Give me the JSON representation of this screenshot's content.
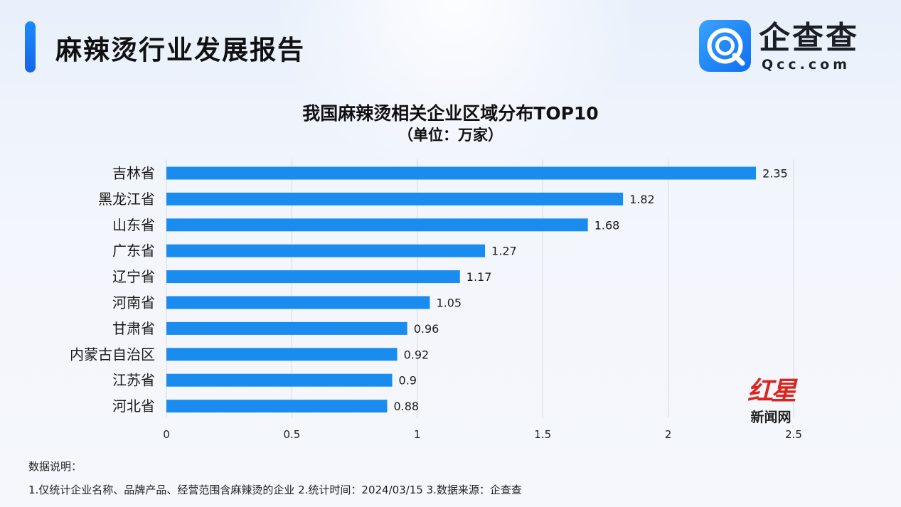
{
  "header": {
    "title": "麻辣烫行业发展报告"
  },
  "logo": {
    "name": "企查查",
    "domain": "Qcc.com",
    "brand_color": "#1a7cf5"
  },
  "chart_data": {
    "type": "bar",
    "orientation": "horizontal",
    "title": "我国麻辣烫相关企业区域分布TOP10",
    "subtitle": "（单位：万家）",
    "categories": [
      "吉林省",
      "黑龙江省",
      "山东省",
      "广东省",
      "辽宁省",
      "河南省",
      "甘肃省",
      "内蒙古自治区",
      "江苏省",
      "河北省"
    ],
    "values": [
      2.35,
      1.82,
      1.68,
      1.27,
      1.17,
      1.05,
      0.96,
      0.92,
      0.9,
      0.88
    ],
    "data_labels": [
      "2.35",
      "1.82",
      "1.68",
      "1.27",
      "1.17",
      "1.05",
      "0.96",
      "0.92",
      "0.9",
      "0.88"
    ],
    "xlim": [
      0,
      2.5
    ],
    "xticks": [
      0,
      0.5,
      1,
      1.5,
      2,
      2.5
    ],
    "xtick_labels": [
      "0",
      "0.5",
      "1",
      "1.5",
      "2",
      "2.5"
    ],
    "grid": true,
    "bar_color": "#1a8cf0"
  },
  "notes": {
    "heading": "数据说明：",
    "body": "1.仅统计企业名称、品牌产品、经营范围含麻辣烫的企业   2.统计时间：2024/03/15   3.数据来源：企查查"
  },
  "watermark": {
    "mark": "红星",
    "text": "新闻网"
  }
}
